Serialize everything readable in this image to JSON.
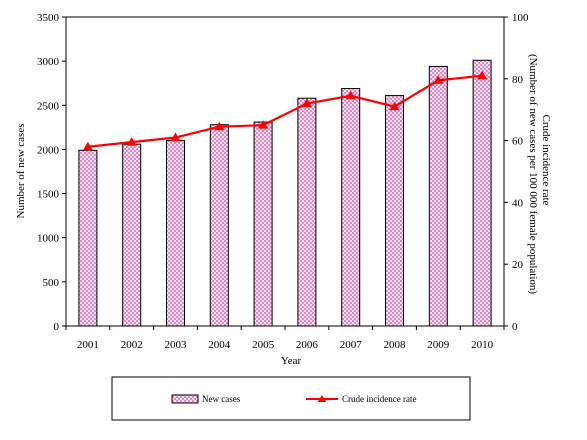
{
  "chart_data": {
    "type": "bar+line",
    "categories": [
      "2001",
      "2002",
      "2003",
      "2004",
      "2005",
      "2006",
      "2007",
      "2008",
      "2009",
      "2010"
    ],
    "series": [
      {
        "name": "New cases",
        "type": "bar",
        "axis": "left",
        "values": [
          1990,
          2060,
          2100,
          2280,
          2310,
          2580,
          2690,
          2610,
          2940,
          3010
        ],
        "color": "#e8b7d8"
      },
      {
        "name": "Crude incidence rate",
        "type": "line",
        "axis": "right",
        "values": [
          58,
          59.5,
          61,
          64.5,
          65,
          72,
          74.5,
          71,
          79.5,
          81
        ],
        "color": "#ff0000"
      }
    ],
    "xlabel": "Year",
    "ylabel": "Number of new cases",
    "ylabel_right_line1": "Crude incidence rate",
    "ylabel_right_line2": "(Number of new cases per 100 000 female population)",
    "ylim": [
      0,
      3500
    ],
    "yticks": [
      "0",
      "500",
      "1000",
      "1500",
      "2000",
      "2500",
      "3000",
      "3500"
    ],
    "ylim_right": [
      0,
      100
    ],
    "yticks_right": [
      "0",
      "20",
      "40",
      "60",
      "80",
      "100"
    ],
    "grid": false,
    "legend_position": "bottom"
  }
}
